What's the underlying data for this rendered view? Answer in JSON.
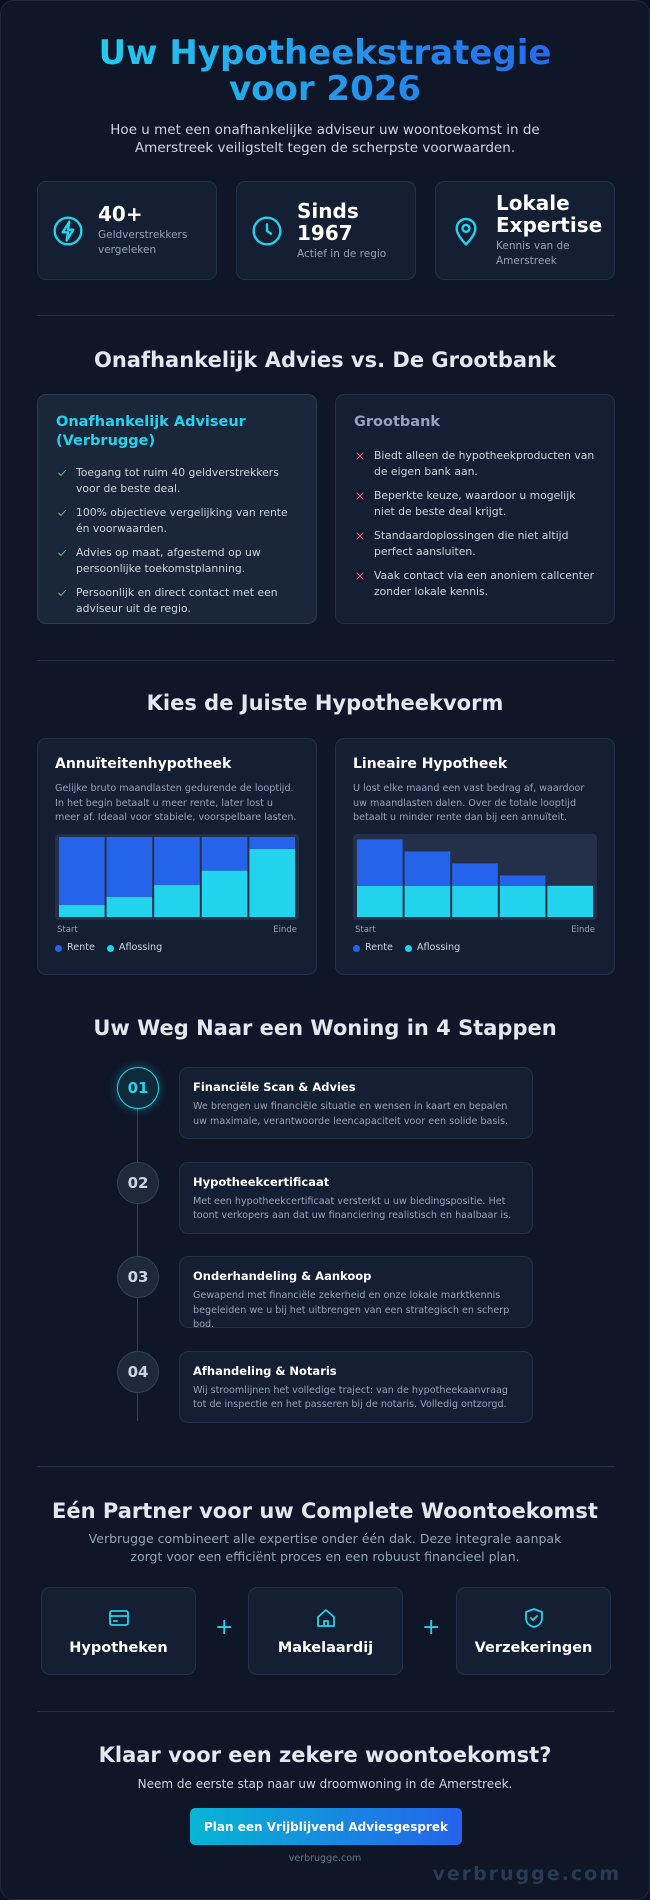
{
  "header": {
    "title": "Uw Hypotheekstrategie voor 2026",
    "subtitle": "Hoe u met een onafhankelijke adviseur uw woontoekomst in de Amerstreek veiligstelt tegen de scherpste voorwaarden."
  },
  "stats": [
    {
      "value": "40+",
      "label": "Geldverstrekkers vergeleken"
    },
    {
      "value": "Sinds 1967",
      "label": "Actief in de regio"
    },
    {
      "value": "Lokale Expertise",
      "label": "Kennis van de Amerstreek"
    }
  ],
  "comparison": {
    "title": "Onafhankelijk Advies vs. De Grootbank",
    "cards": [
      {
        "title": "Onafhankelijk Adviseur (Verbrugge)",
        "items": [
          "Toegang tot ruim 40 geldverstrekkers voor de beste deal.",
          "100% objectieve vergelijking van rente én voorwaarden.",
          "Advies op maat, afgestemd op uw persoonlijke toekomstplanning.",
          "Persoonlijk en direct contact met een adviseur uit de regio."
        ]
      },
      {
        "title": "Grootbank",
        "items": [
          "Biedt alleen de hypotheekproducten van de eigen bank aan.",
          "Beperkte keuze, waardoor u mogelijk niet de beste deal krijgt.",
          "Standaardoplossingen die niet altijd perfect aansluiten.",
          "Vaak contact via een anoniem callcenter zonder lokale kennis."
        ]
      }
    ]
  },
  "mortgage_types": {
    "title": "Kies de Juiste Hypotheekvorm",
    "cards": [
      {
        "title": "Annuïteitenhypotheek",
        "description": "Gelijke bruto maandlasten gedurende de looptijd. In het begin betaalt u meer rente, later lost u meer af. Ideaal voor stabiele, voorspelbare lasten.",
        "chart": {
          "type": "bar",
          "stacked": true,
          "categories": [
            "Start",
            null,
            null,
            null,
            "Einde"
          ],
          "ylim": [
            0,
            100
          ],
          "series": [
            {
              "name": "Rente",
              "color": "#2563eb",
              "values": [
                85,
                75,
                60,
                42,
                15
              ]
            },
            {
              "name": "Aflossing",
              "color": "#22d3ee",
              "values": [
                15,
                25,
                40,
                58,
                85
              ]
            }
          ]
        }
      },
      {
        "title": "Lineaire Hypotheek",
        "description": "U lost elke maand een vast bedrag af, waardoor uw maandlasten dalen. Over de totale looptijd betaalt u minder rente dan bij een annuïteit.",
        "chart": {
          "type": "bar",
          "stacked": true,
          "categories": [
            "Start",
            null,
            null,
            null,
            "Einde"
          ],
          "ylim": [
            0,
            100
          ],
          "series": [
            {
              "name": "Rente",
              "color": "#2563eb",
              "values": [
                58,
                43,
                28,
                13,
                0
              ]
            },
            {
              "name": "Aflossing",
              "color": "#22d3ee",
              "values": [
                39,
                39,
                39,
                39,
                39
              ]
            }
          ]
        }
      }
    ]
  },
  "steps": {
    "title": "Uw Weg Naar een Woning in 4 Stappen",
    "items": [
      {
        "number": "01",
        "title": "Financiële Scan & Advies",
        "description": "We brengen uw financiële situatie en wensen in kaart en bepalen uw maximale, verantwoorde leencapaciteit voor een solide basis."
      },
      {
        "number": "02",
        "title": "Hypotheekcertificaat",
        "description": "Met een hypotheekcertificaat versterkt u uw biedingspositie. Het toont verkopers aan dat uw financiering realistisch en haalbaar is."
      },
      {
        "number": "03",
        "title": "Onderhandeling & Aankoop",
        "description": "Gewapend met financiële zekerheid en onze lokale marktkennis begeleiden we u bij het uitbrengen van een strategisch en scherp bod."
      },
      {
        "number": "04",
        "title": "Afhandeling & Notaris",
        "description": "Wij stroomlijnen het volledige traject: van de hypotheekaanvraag tot de inspectie en het passeren bij de notaris. Volledig ontzorgd."
      }
    ]
  },
  "partner": {
    "title": "Eén Partner voor uw Complete Woontoekomst",
    "subtitle": "Verbrugge combineert alle expertise onder één dak. Deze integrale aanpak zorgt voor een efficiënt proces en een robuust financieel plan.",
    "items": [
      "Hypotheken",
      "Makelaardij",
      "Verzekeringen"
    ],
    "separator": "+"
  },
  "cta": {
    "title": "Klaar voor een zekere woontoekomst?",
    "subtitle": "Neem de eerste stap naar uw droomwoning in de Amerstreek.",
    "button": "Plan een Vrijblijvend Adviesgesprek",
    "url": "verbrugge.com"
  },
  "watermark": "verbrugge.com"
}
